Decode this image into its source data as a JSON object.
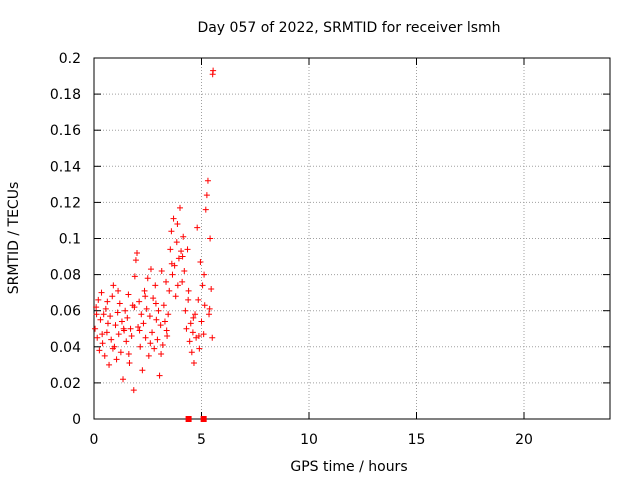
{
  "chart_data": {
    "type": "scatter",
    "title": "Day 057 of 2022, SRMTID for receiver lsmh",
    "xlabel": "GPS time / hours",
    "ylabel": "SRMTID / TECUs",
    "xlim": [
      0,
      24
    ],
    "ylim": [
      0,
      0.2
    ],
    "grid": true,
    "x_ticks": [
      0,
      5,
      10,
      15,
      20
    ],
    "y_ticks": [
      0,
      0.02,
      0.04,
      0.06,
      0.08,
      0.1,
      0.12,
      0.14,
      0.16,
      0.18,
      0.2
    ],
    "x_tick_labels": [
      "0",
      "5",
      "10",
      "15",
      "20"
    ],
    "y_tick_labels": [
      "0",
      "0.02",
      "0.04",
      "0.06",
      "0.08",
      "0.1",
      "0.12",
      "0.14",
      "0.16",
      "0.18",
      "0.2"
    ],
    "marker": "+",
    "series": [
      {
        "name": "SRMTID",
        "color": "#ff0000",
        "points": [
          [
            0.05,
            0.05
          ],
          [
            0.1,
            0.062
          ],
          [
            0.15,
            0.045
          ],
          [
            0.2,
            0.066
          ],
          [
            0.25,
            0.038
          ],
          [
            0.3,
            0.055
          ],
          [
            0.35,
            0.07
          ],
          [
            0.4,
            0.042
          ],
          [
            0.45,
            0.058
          ],
          [
            0.5,
            0.035
          ],
          [
            0.55,
            0.061
          ],
          [
            0.6,
            0.048
          ],
          [
            0.65,
            0.053
          ],
          [
            0.7,
            0.03
          ],
          [
            0.75,
            0.057
          ],
          [
            0.8,
            0.044
          ],
          [
            0.85,
            0.068
          ],
          [
            0.9,
            0.074
          ],
          [
            0.95,
            0.04
          ],
          [
            1.0,
            0.052
          ],
          [
            1.05,
            0.033
          ],
          [
            1.1,
            0.059
          ],
          [
            1.15,
            0.047
          ],
          [
            1.2,
            0.064
          ],
          [
            1.25,
            0.037
          ],
          [
            1.3,
            0.054
          ],
          [
            1.35,
            0.022
          ],
          [
            1.4,
            0.049
          ],
          [
            1.45,
            0.06
          ],
          [
            1.5,
            0.043
          ],
          [
            1.55,
            0.056
          ],
          [
            1.6,
            0.069
          ],
          [
            1.65,
            0.031
          ],
          [
            1.7,
            0.05
          ],
          [
            1.75,
            0.046
          ],
          [
            1.8,
            0.063
          ],
          [
            1.85,
            0.016
          ],
          [
            1.9,
            0.079
          ],
          [
            1.95,
            0.088
          ],
          [
            2.0,
            0.092
          ],
          [
            2.05,
            0.051
          ],
          [
            2.1,
            0.065
          ],
          [
            2.15,
            0.04
          ],
          [
            2.2,
            0.058
          ],
          [
            2.25,
            0.027
          ],
          [
            2.3,
            0.053
          ],
          [
            2.35,
            0.071
          ],
          [
            2.4,
            0.045
          ],
          [
            2.45,
            0.061
          ],
          [
            2.5,
            0.078
          ],
          [
            2.55,
            0.035
          ],
          [
            2.6,
            0.057
          ],
          [
            2.65,
            0.083
          ],
          [
            2.7,
            0.048
          ],
          [
            2.75,
            0.067
          ],
          [
            2.8,
            0.039
          ],
          [
            2.85,
            0.074
          ],
          [
            2.9,
            0.055
          ],
          [
            2.95,
            0.044
          ],
          [
            3.0,
            0.06
          ],
          [
            3.05,
            0.024
          ],
          [
            3.1,
            0.052
          ],
          [
            3.15,
            0.082
          ],
          [
            3.2,
            0.041
          ],
          [
            3.25,
            0.063
          ],
          [
            3.3,
            0.054
          ],
          [
            3.35,
            0.076
          ],
          [
            3.4,
            0.046
          ],
          [
            3.45,
            0.058
          ],
          [
            3.5,
            0.071
          ],
          [
            3.55,
            0.094
          ],
          [
            3.6,
            0.104
          ],
          [
            3.65,
            0.08
          ],
          [
            3.7,
            0.111
          ],
          [
            3.75,
            0.085
          ],
          [
            3.8,
            0.068
          ],
          [
            3.85,
            0.098
          ],
          [
            3.9,
            0.074
          ],
          [
            3.95,
            0.089
          ],
          [
            4.0,
            0.117
          ],
          [
            4.05,
            0.093
          ],
          [
            4.1,
            0.076
          ],
          [
            4.15,
            0.101
          ],
          [
            4.2,
            0.082
          ],
          [
            4.25,
            0.06
          ],
          [
            4.3,
            0.05
          ],
          [
            4.35,
            0.094
          ],
          [
            4.4,
            0.071
          ],
          [
            4.45,
            0.043
          ],
          [
            4.5,
            0.053
          ],
          [
            4.55,
            0.037
          ],
          [
            4.6,
            0.048
          ],
          [
            4.65,
            0.031
          ],
          [
            4.7,
            0.058
          ],
          [
            4.75,
            0.045
          ],
          [
            4.8,
            0.106
          ],
          [
            4.85,
            0.066
          ],
          [
            4.9,
            0.039
          ],
          [
            4.95,
            0.087
          ],
          [
            5.0,
            0.054
          ],
          [
            5.05,
            0.074
          ],
          [
            5.1,
            0.047
          ],
          [
            5.15,
            0.063
          ],
          [
            5.2,
            0.116
          ],
          [
            5.25,
            0.124
          ],
          [
            5.3,
            0.132
          ],
          [
            5.35,
            0.058
          ],
          [
            5.4,
            0.1
          ],
          [
            5.45,
            0.072
          ],
          [
            5.5,
            0.045
          ],
          [
            5.52,
            0.191
          ],
          [
            5.54,
            0.193
          ],
          [
            0.12,
            0.058
          ],
          [
            0.38,
            0.047
          ],
          [
            0.62,
            0.065
          ],
          [
            0.88,
            0.039
          ],
          [
            1.12,
            0.071
          ],
          [
            1.38,
            0.05
          ],
          [
            1.62,
            0.036
          ],
          [
            1.88,
            0.062
          ],
          [
            2.12,
            0.049
          ],
          [
            2.38,
            0.068
          ],
          [
            2.62,
            0.042
          ],
          [
            2.88,
            0.064
          ],
          [
            3.12,
            0.036
          ],
          [
            3.38,
            0.049
          ],
          [
            3.62,
            0.086
          ],
          [
            3.88,
            0.108
          ],
          [
            4.12,
            0.09
          ],
          [
            4.38,
            0.066
          ],
          [
            4.62,
            0.056
          ],
          [
            4.88,
            0.046
          ],
          [
            5.12,
            0.08
          ],
          [
            5.38,
            0.061
          ]
        ]
      }
    ],
    "zero_markers": [
      4.4,
      5.1
    ]
  }
}
